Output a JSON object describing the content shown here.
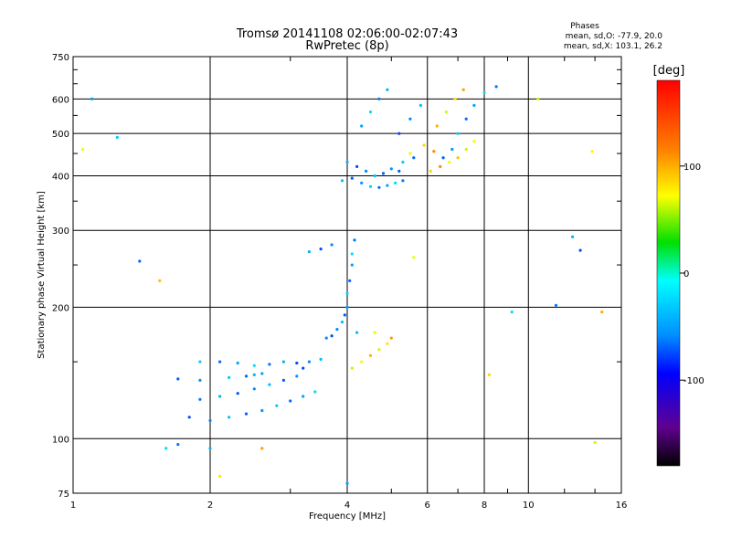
{
  "chart_data": {
    "type": "scatter",
    "title": "Tromsø 20141108 02:06:00-02:07:43",
    "subtitle": "RwPretec (8p)",
    "xlabel": "Frequency [MHz]",
    "ylabel": "Stationary phase Virtual Height [km]",
    "xscale": "log",
    "yscale": "log",
    "xlim": [
      1,
      16
    ],
    "ylim": [
      75,
      750
    ],
    "x_ticks": [
      1,
      2,
      4,
      6,
      8,
      10,
      16
    ],
    "x_tick_labels": [
      "1",
      "2",
      "4",
      "6",
      "8",
      "10",
      "16"
    ],
    "y_ticks": [
      75,
      100,
      200,
      300,
      400,
      500,
      600,
      750
    ],
    "y_tick_labels": [
      "75",
      "100",
      "200",
      "300",
      "400",
      "500",
      "600",
      "750"
    ],
    "grid": true,
    "info_box": {
      "heading": "Phases",
      "line1": "mean, sd,O: -77.9, 20.0",
      "line2": "mean, sd,X: 103.1, 26.2"
    },
    "colorbar": {
      "label": "[deg]",
      "range": [
        -180,
        180
      ],
      "ticks": [
        100,
        0,
        -100
      ],
      "tick_labels": [
        "100",
        "0",
        "-100"
      ]
    },
    "series": [
      {
        "name": "O",
        "phase_mean": -77.9,
        "phase_sd": 20.0,
        "points": [
          [
            1.8,
            112
          ],
          [
            2.0,
            110
          ],
          [
            2.2,
            112
          ],
          [
            2.4,
            114
          ],
          [
            2.6,
            116
          ],
          [
            2.8,
            119
          ],
          [
            3.0,
            122
          ],
          [
            3.2,
            125
          ],
          [
            3.4,
            128
          ],
          [
            1.9,
            123
          ],
          [
            2.1,
            125
          ],
          [
            2.3,
            127
          ],
          [
            2.5,
            130
          ],
          [
            2.7,
            133
          ],
          [
            2.9,
            136
          ],
          [
            3.1,
            139
          ],
          [
            1.9,
            150
          ],
          [
            2.1,
            150
          ],
          [
            2.3,
            149
          ],
          [
            2.5,
            147
          ],
          [
            2.7,
            148
          ],
          [
            2.9,
            150
          ],
          [
            3.1,
            149
          ],
          [
            3.3,
            150
          ],
          [
            3.5,
            152
          ],
          [
            1.7,
            137
          ],
          [
            1.9,
            136
          ],
          [
            2.2,
            138
          ],
          [
            2.4,
            139
          ],
          [
            2.6,
            141
          ],
          [
            1.6,
            95
          ],
          [
            1.7,
            97
          ],
          [
            2.0,
            95
          ],
          [
            3.7,
            172
          ],
          [
            3.8,
            178
          ],
          [
            3.9,
            185
          ],
          [
            3.95,
            192
          ],
          [
            4.0,
            200
          ],
          [
            4.0,
            215
          ],
          [
            4.05,
            230
          ],
          [
            4.1,
            250
          ],
          [
            4.1,
            265
          ],
          [
            4.15,
            285
          ],
          [
            3.3,
            268
          ],
          [
            3.5,
            272
          ],
          [
            3.7,
            278
          ],
          [
            3.9,
            390
          ],
          [
            4.1,
            395
          ],
          [
            4.3,
            385
          ],
          [
            4.5,
            378
          ],
          [
            4.7,
            376
          ],
          [
            4.9,
            380
          ],
          [
            5.1,
            385
          ],
          [
            5.3,
            390
          ],
          [
            4.0,
            430
          ],
          [
            4.2,
            420
          ],
          [
            4.4,
            410
          ],
          [
            4.6,
            400
          ],
          [
            4.8,
            405
          ],
          [
            5.0,
            415
          ],
          [
            5.3,
            430
          ],
          [
            5.6,
            440
          ],
          [
            4.3,
            520
          ],
          [
            4.5,
            560
          ],
          [
            4.7,
            600
          ],
          [
            4.9,
            630
          ],
          [
            5.2,
            500
          ],
          [
            5.5,
            540
          ],
          [
            5.8,
            580
          ],
          [
            6.5,
            440
          ],
          [
            6.8,
            460
          ],
          [
            7.0,
            500
          ],
          [
            7.3,
            540
          ],
          [
            7.6,
            580
          ],
          [
            8.0,
            620
          ],
          [
            8.5,
            640
          ],
          [
            2.5,
            140
          ],
          [
            3.2,
            145
          ],
          [
            3.6,
            170
          ],
          [
            4.2,
            175
          ],
          [
            5.2,
            410
          ],
          [
            1.1,
            600
          ],
          [
            1.25,
            490
          ],
          [
            1.4,
            255
          ],
          [
            4.0,
            79
          ],
          [
            9.2,
            195
          ],
          [
            11.5,
            202
          ],
          [
            12.5,
            290
          ],
          [
            13.0,
            270
          ]
        ]
      },
      {
        "name": "X",
        "phase_mean": 103.1,
        "phase_sd": 26.2,
        "points": [
          [
            4.1,
            145
          ],
          [
            4.3,
            150
          ],
          [
            4.5,
            155
          ],
          [
            4.7,
            160
          ],
          [
            4.9,
            165
          ],
          [
            5.0,
            170
          ],
          [
            4.6,
            175
          ],
          [
            6.1,
            410
          ],
          [
            6.4,
            420
          ],
          [
            6.7,
            430
          ],
          [
            7.0,
            440
          ],
          [
            7.3,
            460
          ],
          [
            7.6,
            480
          ],
          [
            6.3,
            520
          ],
          [
            6.6,
            560
          ],
          [
            6.9,
            600
          ],
          [
            7.2,
            630
          ],
          [
            5.5,
            450
          ],
          [
            5.9,
            470
          ],
          [
            6.2,
            455
          ],
          [
            1.05,
            460
          ],
          [
            1.55,
            230
          ],
          [
            10.5,
            600
          ],
          [
            13.8,
            455
          ],
          [
            14.5,
            195
          ],
          [
            14.0,
            98
          ],
          [
            2.1,
            82
          ],
          [
            2.6,
            95
          ],
          [
            5.6,
            260
          ],
          [
            8.2,
            140
          ]
        ]
      }
    ]
  }
}
